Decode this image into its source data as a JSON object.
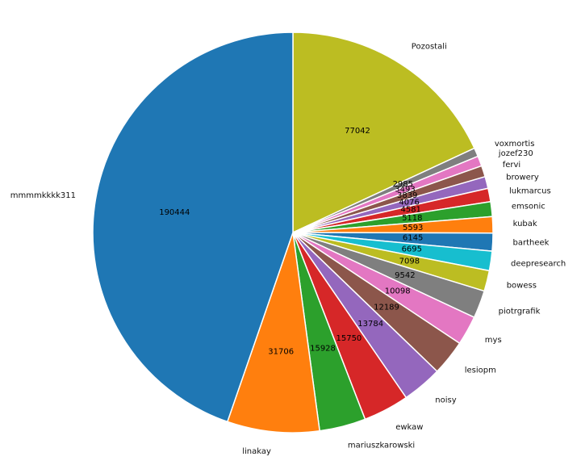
{
  "chart_data": {
    "type": "pie",
    "title": "",
    "start_angle_deg": 90,
    "counterclock": false,
    "slices": [
      {
        "label": "Pozostali",
        "value": 77042,
        "color": "#bcbd22"
      },
      {
        "label": "voxmortis",
        "value": 2985,
        "color": "#7f7f7f"
      },
      {
        "label": "jozef230",
        "value": 3493,
        "color": "#e377c2"
      },
      {
        "label": "fervi",
        "value": 3839,
        "color": "#8c564b"
      },
      {
        "label": "browery",
        "value": 4076,
        "color": "#9467bd"
      },
      {
        "label": "lukmarcus",
        "value": 4581,
        "color": "#d62728"
      },
      {
        "label": "emsonic",
        "value": 5118,
        "color": "#2ca02c"
      },
      {
        "label": "kubak",
        "value": 5593,
        "color": "#ff7f0e"
      },
      {
        "label": "bartheek",
        "value": 6145,
        "color": "#1f77b4"
      },
      {
        "label": "deepresearch",
        "value": 6695,
        "color": "#17becf"
      },
      {
        "label": "bowess",
        "value": 7098,
        "color": "#bcbd22"
      },
      {
        "label": "piotrgrafik",
        "value": 9542,
        "color": "#7f7f7f"
      },
      {
        "label": "mys",
        "value": 10098,
        "color": "#e377c2"
      },
      {
        "label": "lesiopm",
        "value": 12189,
        "color": "#8c564b"
      },
      {
        "label": "noisy",
        "value": 13784,
        "color": "#9467bd"
      },
      {
        "label": "ewkaw",
        "value": 15750,
        "color": "#d62728"
      },
      {
        "label": "mariuszkarowski",
        "value": 15928,
        "color": "#2ca02c"
      },
      {
        "label": "linakay",
        "value": 31706,
        "color": "#ff7f0e"
      },
      {
        "label": "mmmmkkkk311",
        "value": 190444,
        "color": "#1f77b4"
      }
    ]
  }
}
